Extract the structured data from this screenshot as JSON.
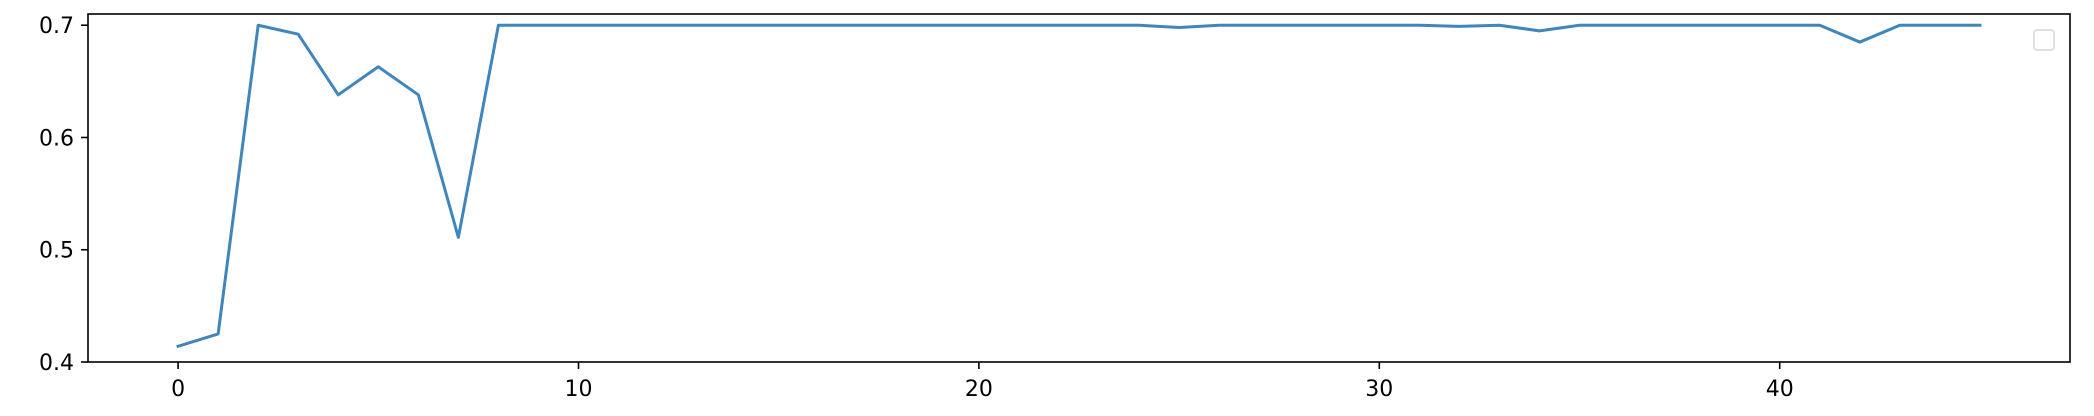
{
  "chart_data": {
    "type": "line",
    "title": "",
    "xlabel": "",
    "ylabel": "",
    "xlim": [
      -2.25,
      47.25
    ],
    "ylim": [
      0.4,
      0.71
    ],
    "x_ticks": [
      0,
      10,
      20,
      30,
      40
    ],
    "y_ticks": [
      0.4,
      0.5,
      0.6,
      0.7
    ],
    "x_tick_labels": [
      "0",
      "10",
      "20",
      "30",
      "40"
    ],
    "y_tick_labels": [
      "0.4",
      "0.5",
      "0.6",
      "0.7"
    ],
    "grid": false,
    "legend": {
      "placement": "top-right",
      "entries": []
    },
    "series": [
      {
        "color": "#3f86bd",
        "x": [
          0,
          1,
          2,
          3,
          4,
          5,
          6,
          7,
          8,
          9,
          10,
          11,
          12,
          13,
          14,
          15,
          16,
          17,
          18,
          19,
          20,
          21,
          22,
          23,
          24,
          25,
          26,
          27,
          28,
          29,
          30,
          31,
          32,
          33,
          34,
          35,
          36,
          37,
          38,
          39,
          40,
          41,
          42,
          43,
          44,
          45
        ],
        "y": [
          0.414,
          0.425,
          0.7,
          0.692,
          0.638,
          0.663,
          0.638,
          0.511,
          0.7,
          0.7,
          0.7,
          0.7,
          0.7,
          0.7,
          0.7,
          0.7,
          0.7,
          0.7,
          0.7,
          0.7,
          0.7,
          0.7,
          0.7,
          0.7,
          0.7,
          0.698,
          0.7,
          0.7,
          0.7,
          0.7,
          0.7,
          0.7,
          0.699,
          0.7,
          0.695,
          0.7,
          0.7,
          0.7,
          0.7,
          0.7,
          0.7,
          0.7,
          0.685,
          0.7,
          0.7,
          0.7
        ]
      }
    ]
  }
}
